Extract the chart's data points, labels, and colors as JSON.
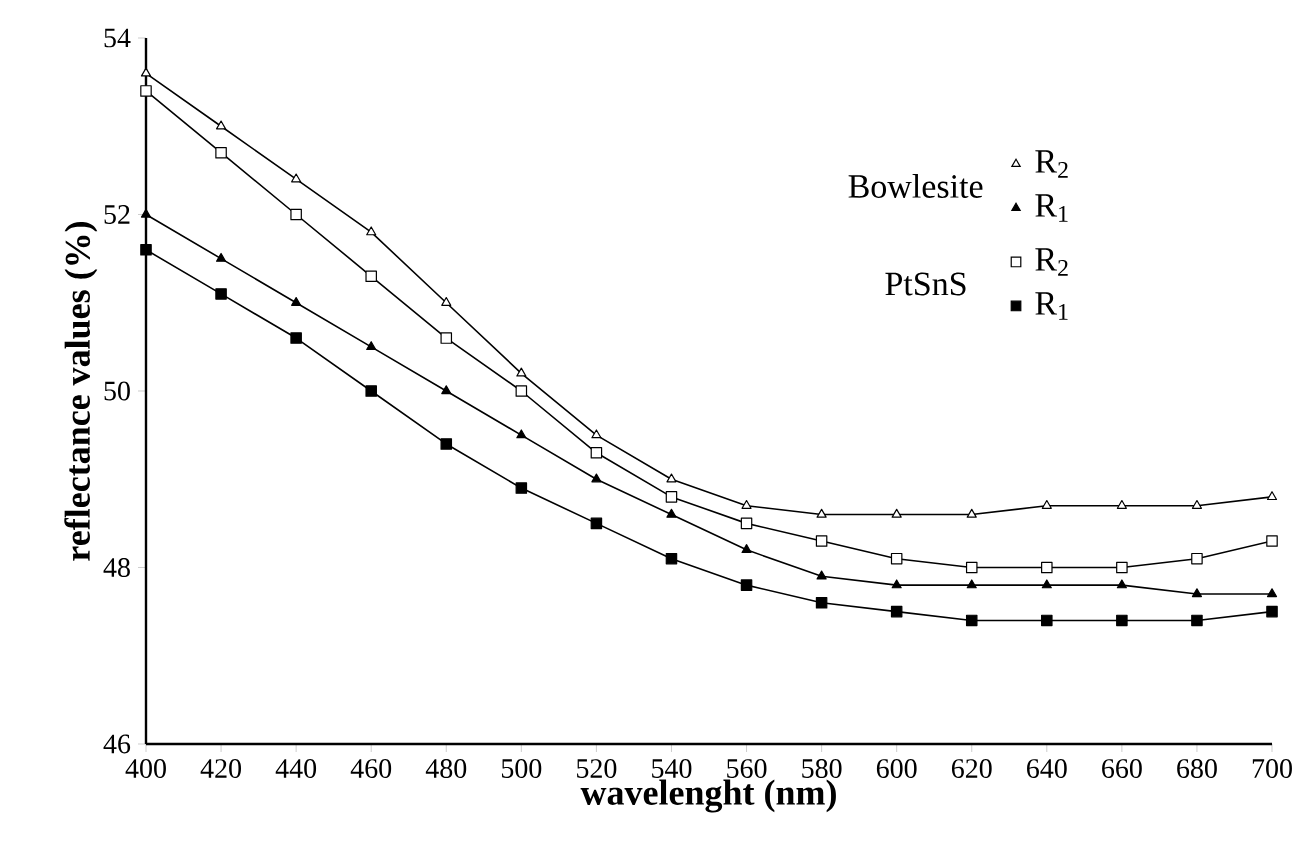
{
  "chart_data": {
    "type": "line",
    "xlabel": "wavelenght (nm)",
    "ylabel": "reflectance values (%)",
    "x": [
      400,
      420,
      440,
      460,
      480,
      500,
      520,
      540,
      560,
      580,
      600,
      620,
      640,
      660,
      680,
      700
    ],
    "xlim": [
      400,
      700
    ],
    "xticks": [
      400,
      420,
      440,
      460,
      480,
      500,
      520,
      540,
      560,
      580,
      600,
      620,
      640,
      660,
      680,
      700
    ],
    "ylim": [
      46,
      54
    ],
    "yticks": [
      46,
      48,
      50,
      52,
      54
    ],
    "grid": false,
    "legend": "top right",
    "line_style": "solid",
    "annotations": [
      "Bowlesite",
      "PtSnS"
    ],
    "series": [
      {
        "name": "R$_{2}$",
        "color": "#000000",
        "marker": "triangle-open",
        "values": [
          53.6,
          53.0,
          52.4,
          51.8,
          51.0,
          50.2,
          49.5,
          49.0,
          48.7,
          48.6,
          48.6,
          48.6,
          48.7,
          48.7,
          48.7,
          48.8
        ]
      },
      {
        "name": "R$_{1}$",
        "color": "#000000",
        "marker": "triangle",
        "values": [
          52.0,
          51.5,
          51.0,
          50.5,
          50.0,
          49.5,
          49.0,
          48.6,
          48.2,
          47.9,
          47.8,
          47.8,
          47.8,
          47.8,
          47.7,
          47.7
        ]
      },
      {
        "name": "R$_{2}$",
        "color": "#000000",
        "marker": "square-open",
        "values": [
          53.4,
          52.7,
          52.0,
          51.3,
          50.6,
          50.0,
          49.3,
          48.8,
          48.5,
          48.3,
          48.1,
          48.0,
          48.0,
          48.0,
          48.1,
          48.3
        ]
      },
      {
        "name": "R$_{1}$",
        "color": "#000000",
        "marker": "square",
        "values": [
          51.6,
          51.1,
          50.6,
          50.0,
          49.4,
          48.9,
          48.5,
          48.1,
          47.8,
          47.6,
          47.5,
          47.4,
          47.4,
          47.4,
          47.4,
          47.5
        ]
      }
    ]
  }
}
